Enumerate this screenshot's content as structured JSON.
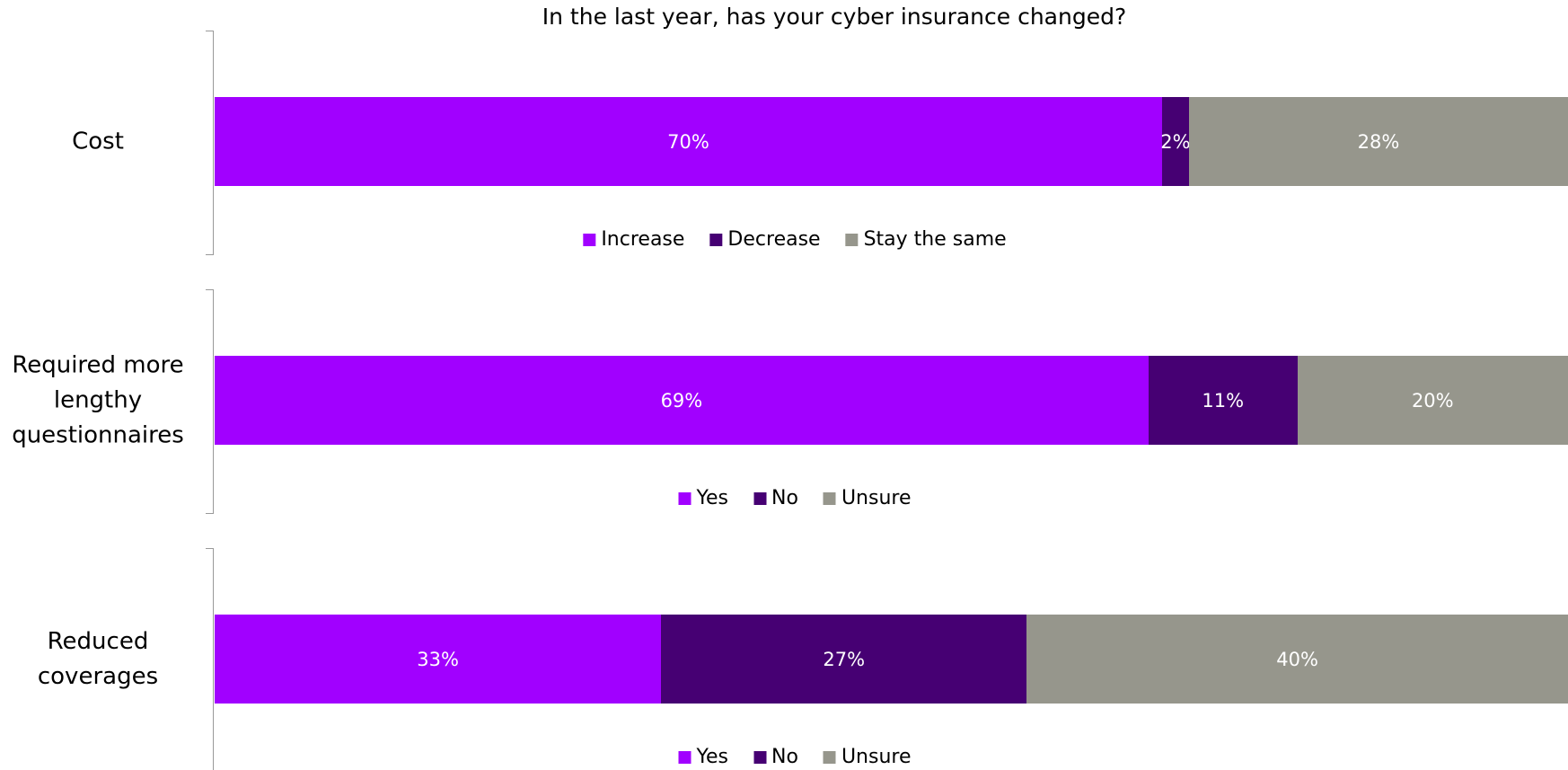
{
  "title": "In the last year, has your cyber insurance changed?",
  "chart_data": [
    {
      "type": "bar",
      "stacked": true,
      "orientation": "horizontal",
      "xlim": [
        0,
        100
      ],
      "categories": [
        "Cost"
      ],
      "series": [
        {
          "name": "Increase",
          "color": "#a100ff",
          "values": [
            70
          ],
          "value_labels": [
            "70%"
          ]
        },
        {
          "name": "Decrease",
          "color": "#460073",
          "values": [
            2
          ],
          "value_labels": [
            "2%"
          ]
        },
        {
          "name": "Stay the same",
          "color": "#96968c",
          "values": [
            28
          ],
          "value_labels": [
            "28%"
          ]
        }
      ]
    },
    {
      "type": "bar",
      "stacked": true,
      "orientation": "horizontal",
      "xlim": [
        0,
        100
      ],
      "categories": [
        "Required more lengthy questionnaires"
      ],
      "series": [
        {
          "name": "Yes",
          "color": "#a100ff",
          "values": [
            69
          ],
          "value_labels": [
            "69%"
          ]
        },
        {
          "name": "No",
          "color": "#460073",
          "values": [
            11
          ],
          "value_labels": [
            "11%"
          ]
        },
        {
          "name": "Unsure",
          "color": "#96968c",
          "values": [
            20
          ],
          "value_labels": [
            "20%"
          ]
        }
      ]
    },
    {
      "type": "bar",
      "stacked": true,
      "orientation": "horizontal",
      "xlim": [
        0,
        100
      ],
      "categories": [
        "Reduced coverages"
      ],
      "series": [
        {
          "name": "Yes",
          "color": "#a100ff",
          "values": [
            33
          ],
          "value_labels": [
            "33%"
          ]
        },
        {
          "name": "No",
          "color": "#460073",
          "values": [
            27
          ],
          "value_labels": [
            "27%"
          ]
        },
        {
          "name": "Unsure",
          "color": "#96968c",
          "values": [
            40
          ],
          "value_labels": [
            "40%"
          ]
        }
      ]
    }
  ]
}
